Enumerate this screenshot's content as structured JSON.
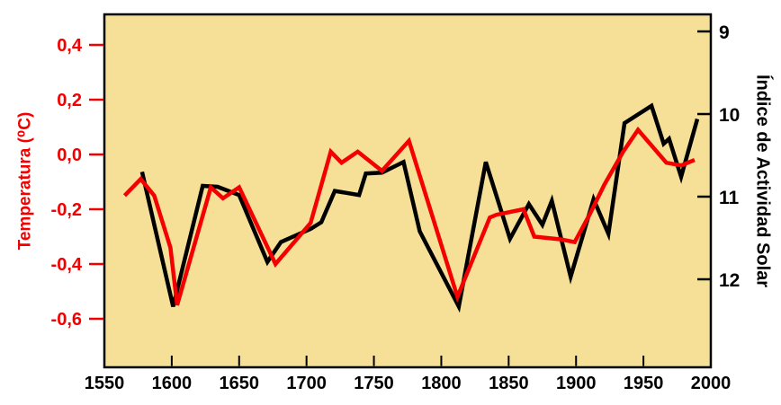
{
  "chart_data": {
    "type": "line",
    "title": "",
    "plot_background": "#F6DF97",
    "border_color": "#000000",
    "x_axis": {
      "range": [
        1550,
        2000
      ],
      "ticks": [
        "1550",
        "1600",
        "1650",
        "1700",
        "1750",
        "1800",
        "1850",
        "1900",
        "1950",
        "2000"
      ],
      "tick_values": [
        1550,
        1600,
        1650,
        1700,
        1750,
        1800,
        1850,
        1900,
        1950,
        2000
      ],
      "grid": false
    },
    "left_axis": {
      "label": "Temperatura (⁰C)",
      "color": "#F40000",
      "ticks": [
        "0,4",
        "0,2",
        "0,0",
        "-0,2",
        "-0,4",
        "-0,6"
      ],
      "tick_values": [
        0.4,
        0.2,
        0.0,
        -0.2,
        -0.4,
        -0.6
      ],
      "range": [
        -0.78,
        0.51
      ]
    },
    "right_axis": {
      "label": "Índice de Actividad Solar",
      "color": "#000000",
      "ticks": [
        "9",
        "10",
        "11",
        "12"
      ],
      "tick_values": [
        9,
        10,
        11,
        12
      ],
      "range": [
        8.8,
        13.1
      ],
      "inverted": true
    },
    "legend": "none",
    "series": [
      {
        "name": "Temperatura",
        "axis": "left",
        "color": "#F40000",
        "points": [
          [
            1565,
            -0.15
          ],
          [
            1577,
            -0.09
          ],
          [
            1587,
            -0.15
          ],
          [
            1599,
            -0.34
          ],
          [
            1604,
            -0.55
          ],
          [
            1629,
            -0.12
          ],
          [
            1638,
            -0.16
          ],
          [
            1650,
            -0.12
          ],
          [
            1677,
            -0.4
          ],
          [
            1703,
            -0.25
          ],
          [
            1718,
            0.01
          ],
          [
            1726,
            -0.03
          ],
          [
            1738,
            0.01
          ],
          [
            1756,
            -0.06
          ],
          [
            1776,
            0.05
          ],
          [
            1812,
            -0.52
          ],
          [
            1836,
            -0.23
          ],
          [
            1841,
            -0.22
          ],
          [
            1861,
            -0.2
          ],
          [
            1869,
            -0.3
          ],
          [
            1889,
            -0.31
          ],
          [
            1899,
            -0.32
          ],
          [
            1910,
            -0.22
          ],
          [
            1921,
            -0.11
          ],
          [
            1935,
            0.01
          ],
          [
            1946,
            0.09
          ],
          [
            1967,
            -0.03
          ],
          [
            1978,
            -0.04
          ],
          [
            1988,
            -0.02
          ]
        ]
      },
      {
        "name": "Índice de Actividad Solar",
        "axis": "right",
        "color": "#000000",
        "points": [
          [
            1578,
            10.7
          ],
          [
            1601,
            12.33
          ],
          [
            1623,
            10.87
          ],
          [
            1634,
            10.88
          ],
          [
            1650,
            10.98
          ],
          [
            1671,
            11.79
          ],
          [
            1681,
            11.55
          ],
          [
            1703,
            11.39
          ],
          [
            1711,
            11.31
          ],
          [
            1721,
            10.93
          ],
          [
            1739,
            10.98
          ],
          [
            1744,
            10.72
          ],
          [
            1756,
            10.71
          ],
          [
            1772,
            10.58
          ],
          [
            1784,
            11.42
          ],
          [
            1813,
            12.33
          ],
          [
            1833,
            10.58
          ],
          [
            1851,
            11.51
          ],
          [
            1865,
            11.09
          ],
          [
            1875,
            11.34
          ],
          [
            1882,
            11.05
          ],
          [
            1896,
            11.97
          ],
          [
            1913,
            11.03
          ],
          [
            1924,
            11.45
          ],
          [
            1936,
            10.11
          ],
          [
            1956,
            9.9
          ],
          [
            1965,
            10.36
          ],
          [
            1969,
            10.3
          ],
          [
            1978,
            10.76
          ],
          [
            1990,
            10.06
          ]
        ]
      }
    ]
  }
}
